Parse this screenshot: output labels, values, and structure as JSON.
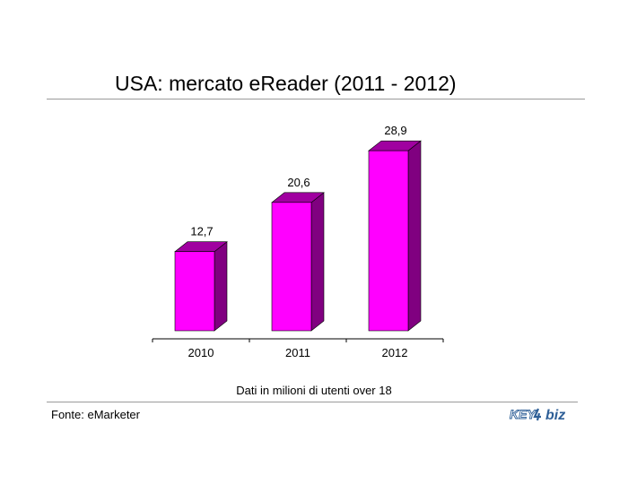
{
  "chart_data": {
    "type": "bar",
    "title": "USA: mercato eReader (2011 - 2012)",
    "categories": [
      "2010",
      "2011",
      "2012"
    ],
    "values": [
      12.7,
      20.6,
      28.9
    ],
    "value_labels": [
      "12,7",
      "20,6",
      "28,9"
    ],
    "ylim": [
      0,
      30
    ],
    "grid": false,
    "legend": "none",
    "note": "Dati in milioni di utenti over 18"
  },
  "source": "Fonte: eMarketer",
  "logo": {
    "text_left": "KEY",
    "text_right": "biz"
  },
  "colors": {
    "bar_front": "#ff00ff",
    "bar_side": "#800080",
    "bar_top": "#a000a0",
    "logo_blue": "#2e5f97"
  }
}
